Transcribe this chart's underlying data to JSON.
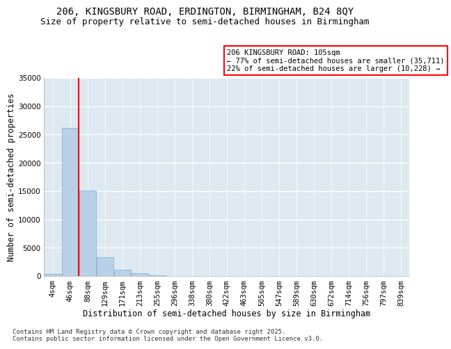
{
  "title_line1": "206, KINGSBURY ROAD, ERDINGTON, BIRMINGHAM, B24 8QY",
  "title_line2": "Size of property relative to semi-detached houses in Birmingham",
  "xlabel": "Distribution of semi-detached houses by size in Birmingham",
  "ylabel": "Number of semi-detached properties",
  "categories": [
    "4sqm",
    "46sqm",
    "88sqm",
    "129sqm",
    "171sqm",
    "213sqm",
    "255sqm",
    "296sqm",
    "338sqm",
    "380sqm",
    "422sqm",
    "463sqm",
    "505sqm",
    "547sqm",
    "589sqm",
    "630sqm",
    "672sqm",
    "714sqm",
    "756sqm",
    "797sqm",
    "839sqm"
  ],
  "values": [
    380,
    26100,
    15050,
    3300,
    1050,
    480,
    145,
    30,
    10,
    5,
    3,
    2,
    1,
    1,
    0,
    0,
    0,
    0,
    0,
    0,
    0
  ],
  "bar_color": "#b8d0e8",
  "bar_edge_color": "#7aaad0",
  "vline_color": "red",
  "vline_x_index": 2,
  "annotation_text": "206 KINGSBURY ROAD: 105sqm\n← 77% of semi-detached houses are smaller (35,711)\n22% of semi-detached houses are larger (10,228) →",
  "annotation_box_color": "white",
  "annotation_box_edge": "red",
  "ylim": [
    0,
    35000
  ],
  "yticks": [
    0,
    5000,
    10000,
    15000,
    20000,
    25000,
    30000,
    35000
  ],
  "background_color": "#dde8f0",
  "grid_color": "white",
  "footer_text": "Contains HM Land Registry data © Crown copyright and database right 2025.\nContains public sector information licensed under the Open Government Licence v3.0.",
  "title_fontsize": 10,
  "subtitle_fontsize": 9,
  "axis_label_fontsize": 8.5,
  "tick_fontsize": 7.5,
  "annotation_fontsize": 7.5,
  "footer_fontsize": 6.5
}
